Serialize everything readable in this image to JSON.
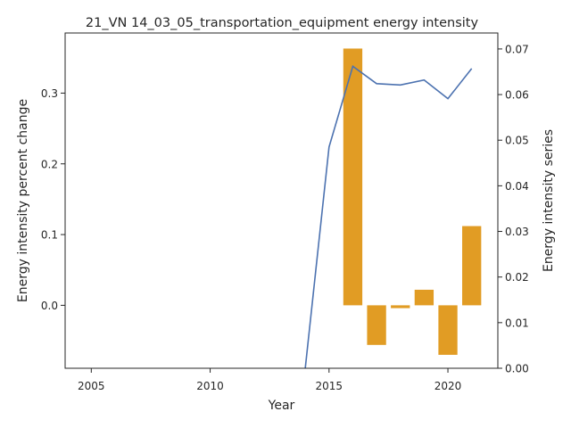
{
  "chart_data": {
    "type": "bar",
    "title": "21_VN 14_03_05_transportation_equipment energy intensity",
    "xlabel": "Year",
    "ylabel": "Energy intensity percent change",
    "y2label": "Energy intensity series",
    "xlim": [
      2003.9,
      2022.1
    ],
    "ylim": [
      -0.089,
      0.385
    ],
    "y2lim": [
      0.0,
      0.0735
    ],
    "x_ticks": [
      2005,
      2010,
      2015,
      2020
    ],
    "x_tick_labels": [
      "2005",
      "2010",
      "2015",
      "2020"
    ],
    "y_ticks": [
      0.0,
      0.1,
      0.2,
      0.3
    ],
    "y_tick_labels": [
      "0.0",
      "0.1",
      "0.2",
      "0.3"
    ],
    "y2_ticks": [
      0.0,
      0.01,
      0.02,
      0.03,
      0.04,
      0.05,
      0.06,
      0.07
    ],
    "y2_tick_labels": [
      "0.00",
      "0.01",
      "0.02",
      "0.03",
      "0.04",
      "0.05",
      "0.06",
      "0.07"
    ],
    "grid": false,
    "bars": {
      "axis": "left",
      "color": "#e19c24",
      "x": [
        2016,
        2017,
        2018,
        2019,
        2020,
        2021
      ],
      "values": [
        0.363,
        -0.056,
        -0.004,
        0.022,
        -0.07,
        0.112
      ]
    },
    "line": {
      "axis": "right",
      "color": "#4c72b0",
      "x": [
        2014,
        2015,
        2016,
        2017,
        2018,
        2019,
        2020,
        2021
      ],
      "values": [
        0.0,
        0.0485,
        0.0662,
        0.0624,
        0.0621,
        0.0632,
        0.0591,
        0.0657
      ]
    }
  }
}
